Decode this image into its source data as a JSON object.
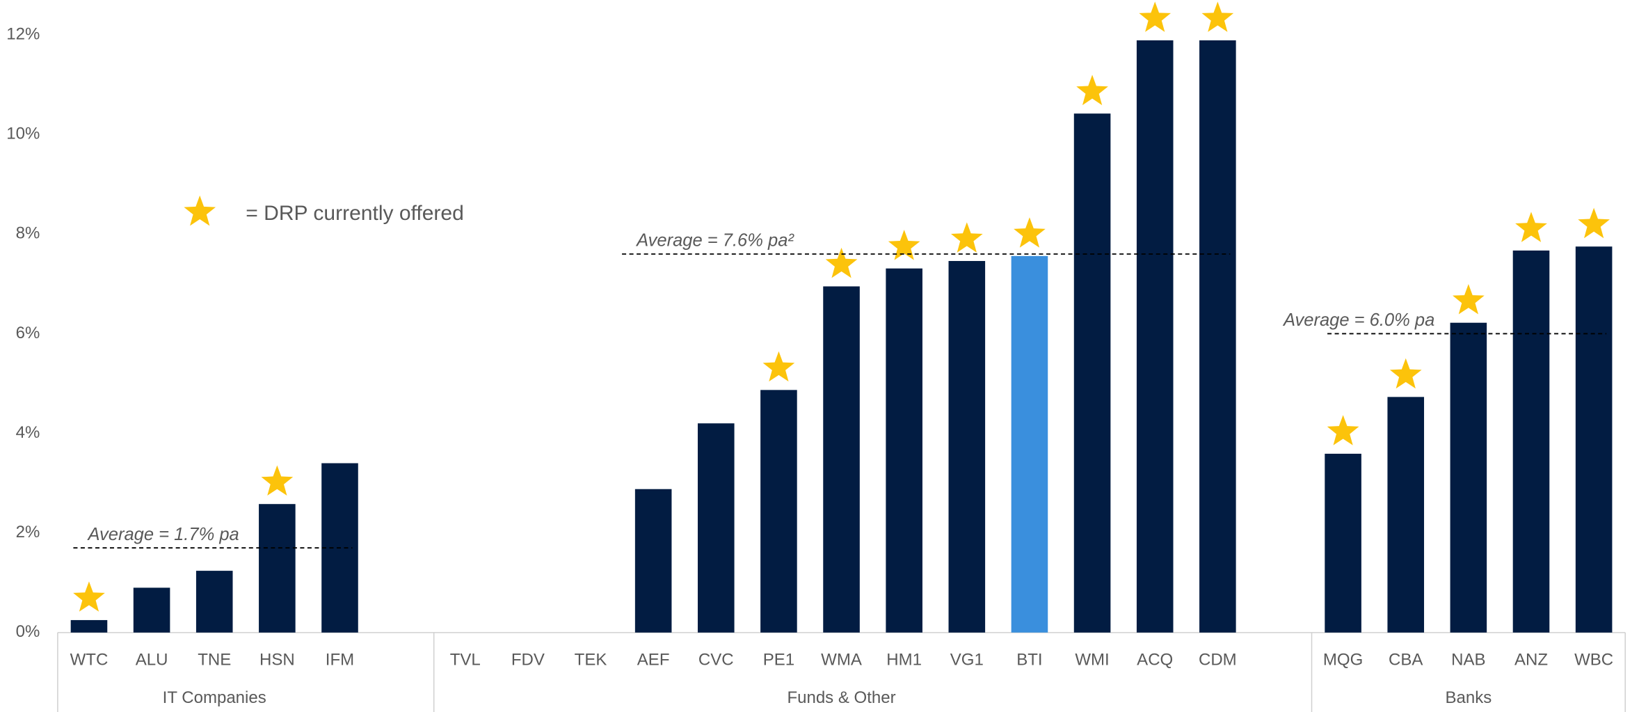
{
  "chart_data": {
    "type": "bar",
    "ylim": [
      0,
      12.7
    ],
    "yticks": [
      {
        "value": 0,
        "label": "0%"
      },
      {
        "value": 2,
        "label": "2%"
      },
      {
        "value": 4,
        "label": "4%"
      },
      {
        "value": 6,
        "label": "6%"
      },
      {
        "value": 8,
        "label": "8%"
      },
      {
        "value": 10,
        "label": "10%"
      },
      {
        "value": 12,
        "label": "12%"
      }
    ],
    "color": "#021c42",
    "star_color": "#fcc30b",
    "legend": "= DRP currently offered",
    "groups": [
      {
        "name": "IT Companies",
        "categories": [
          "WTC",
          "ALU",
          "TNE",
          "HSN",
          "IFM"
        ],
        "values": [
          0.25,
          0.9,
          1.24,
          2.58,
          3.4
        ],
        "colors": [
          "#021c42",
          "#021c42",
          "#021c42",
          "#021c42",
          "#021c42"
        ],
        "drp": [
          true,
          false,
          false,
          true,
          false
        ],
        "average": {
          "label": "Average = 1.7% pa",
          "value": 1.7
        }
      },
      {
        "name": "Funds & Other",
        "categories": [
          "TVL",
          "FDV",
          "TEK",
          "AEF",
          "CVC",
          "PE1",
          "WMA",
          "HM1",
          "VG1",
          "BTI",
          "WMI",
          "ACQ",
          "CDM"
        ],
        "values": [
          0,
          0,
          0,
          2.88,
          4.2,
          4.87,
          6.95,
          7.31,
          7.46,
          7.56,
          10.42,
          11.89,
          11.89
        ],
        "colors": [
          "#021c42",
          "#021c42",
          "#021c42",
          "#021c42",
          "#021c42",
          "#021c42",
          "#021c42",
          "#021c42",
          "#021c42",
          "#3a8fdd",
          "#021c42",
          "#021c42",
          "#021c42"
        ],
        "drp": [
          false,
          false,
          false,
          false,
          false,
          true,
          true,
          true,
          true,
          true,
          true,
          true,
          true
        ],
        "average": {
          "label": "Average =  7.6% pa²",
          "value": 7.6
        }
      },
      {
        "name": "Banks",
        "categories": [
          "MQG",
          "CBA",
          "NAB",
          "ANZ",
          "WBC"
        ],
        "values": [
          3.59,
          4.73,
          6.22,
          7.67,
          7.75
        ],
        "colors": [
          "#021c42",
          "#021c42",
          "#021c42",
          "#021c42",
          "#021c42"
        ],
        "drp": [
          true,
          true,
          true,
          true,
          true
        ],
        "average": {
          "label": "Average =  6.0% pa",
          "value": 6.0
        }
      }
    ]
  }
}
